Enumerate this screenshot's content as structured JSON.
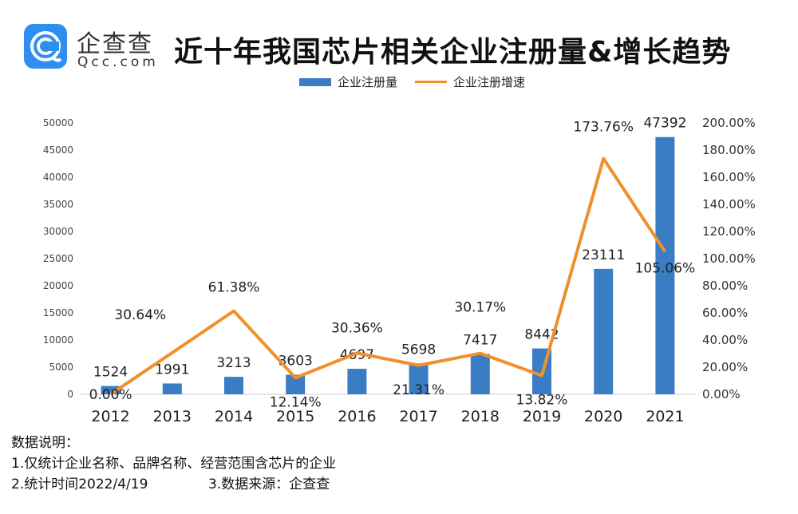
{
  "logo": {
    "cn": "企查查",
    "en": "Qcc.com"
  },
  "title": "近十年我国芯片相关企业注册量&增长趋势",
  "colors": {
    "bar": "#3b7dc4",
    "line": "#f0902a"
  },
  "chart_data": {
    "type": "bar+line",
    "title": "近十年我国芯片相关企业注册量&增长趋势",
    "categories": [
      "2012",
      "2013",
      "2014",
      "2015",
      "2016",
      "2017",
      "2018",
      "2019",
      "2020",
      "2021"
    ],
    "series": [
      {
        "name": "企业注册量",
        "type": "bar",
        "axis": "left",
        "values": [
          1524,
          1991,
          3213,
          3603,
          4697,
          5698,
          7417,
          8442,
          23111,
          47392
        ],
        "labels": [
          "1524",
          "1991",
          "3213",
          "3603",
          "4697",
          "5698",
          "7417",
          "8442",
          "23111",
          "47392"
        ]
      },
      {
        "name": "企业注册增速",
        "type": "line",
        "axis": "right",
        "values": [
          0,
          30.64,
          61.38,
          12.14,
          30.36,
          21.31,
          30.17,
          13.82,
          173.76,
          105.06
        ],
        "labels": [
          "0.00%",
          "30.64%",
          "61.38%",
          "12.14%",
          "30.36%",
          "21.31%",
          "30.17%",
          "13.82%",
          "173.76%",
          "105.06%"
        ]
      }
    ],
    "y_left": {
      "lim": [
        0,
        50000
      ],
      "ticks": [
        "0",
        "5000",
        "10000",
        "15000",
        "20000",
        "25000",
        "30000",
        "35000",
        "40000",
        "45000",
        "50000"
      ]
    },
    "y_right": {
      "lim": [
        0,
        200
      ],
      "ticks": [
        "0.00%",
        "20.00%",
        "40.00%",
        "60.00%",
        "80.00%",
        "100.00%",
        "120.00%",
        "140.00%",
        "160.00%",
        "180.00%",
        "200.00%"
      ]
    },
    "legend": "top",
    "grid": false
  },
  "notes": [
    "数据说明：",
    "1.仅统计企业名称、品牌名称、经营范围含芯片的企业",
    "2.统计时间2022/4/19              3.数据来源：企查查"
  ]
}
